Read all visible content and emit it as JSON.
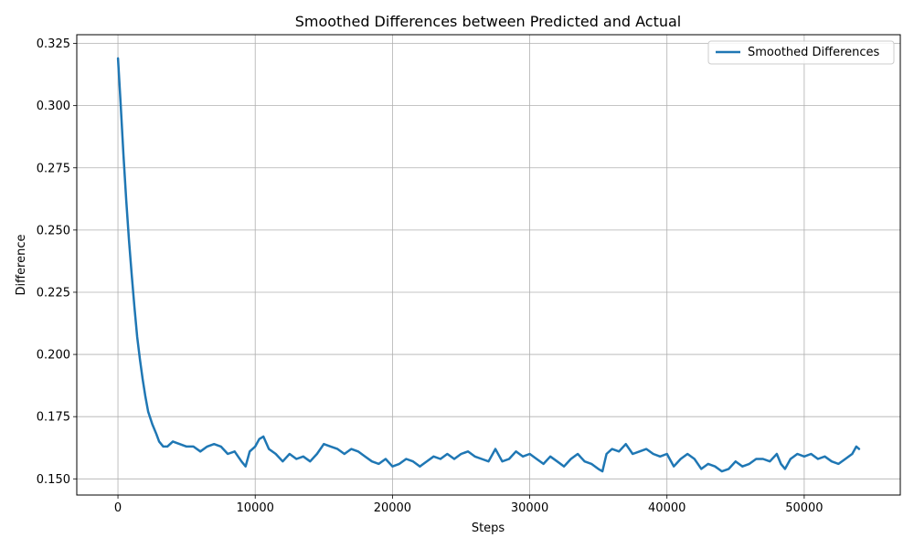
{
  "chart_data": {
    "type": "line",
    "title": "Smoothed Differences between Predicted and Actual",
    "xlabel": "Steps",
    "ylabel": "Difference",
    "xlim": [
      -3000,
      57000
    ],
    "ylim": [
      0.1435,
      0.3285
    ],
    "xticks": [
      0,
      10000,
      20000,
      30000,
      40000,
      50000
    ],
    "yticks": [
      0.15,
      0.175,
      0.2,
      0.225,
      0.25,
      0.275,
      0.3,
      0.325
    ],
    "xtick_labels": [
      "0",
      "10000",
      "20000",
      "30000",
      "40000",
      "50000"
    ],
    "ytick_labels": [
      "0.150",
      "0.175",
      "0.200",
      "0.225",
      "0.250",
      "0.275",
      "0.300",
      "0.325"
    ],
    "grid": true,
    "legend_position": "top-right",
    "line_color": "#1f77b4",
    "series": [
      {
        "name": "Smoothed Differences",
        "x": [
          0,
          200,
          400,
          600,
          800,
          1000,
          1200,
          1400,
          1600,
          1800,
          2000,
          2200,
          2500,
          2800,
          3000,
          3300,
          3600,
          4000,
          4500,
          5000,
          5500,
          6000,
          6500,
          7000,
          7500,
          8000,
          8500,
          9000,
          9300,
          9600,
          10000,
          10300,
          10600,
          11000,
          11500,
          12000,
          12500,
          13000,
          13500,
          14000,
          14500,
          15000,
          15500,
          16000,
          16500,
          17000,
          17500,
          18000,
          18500,
          19000,
          19500,
          20000,
          20500,
          21000,
          21500,
          22000,
          22500,
          23000,
          23500,
          24000,
          24500,
          25000,
          25500,
          26000,
          26500,
          27000,
          27500,
          28000,
          28500,
          29000,
          29500,
          30000,
          30500,
          31000,
          31500,
          32000,
          32500,
          33000,
          33500,
          34000,
          34500,
          35000,
          35300,
          35600,
          36000,
          36500,
          37000,
          37500,
          38000,
          38500,
          39000,
          39500,
          40000,
          40500,
          41000,
          41500,
          42000,
          42500,
          43000,
          43500,
          44000,
          44500,
          45000,
          45500,
          46000,
          46500,
          47000,
          47500,
          48000,
          48300,
          48600,
          49000,
          49500,
          50000,
          50500,
          51000,
          51500,
          52000,
          52500,
          53000,
          53500,
          53800,
          54000
        ],
        "values": [
          0.319,
          0.3,
          0.28,
          0.262,
          0.246,
          0.232,
          0.219,
          0.207,
          0.198,
          0.19,
          0.183,
          0.177,
          0.172,
          0.168,
          0.165,
          0.163,
          0.163,
          0.165,
          0.164,
          0.163,
          0.163,
          0.161,
          0.163,
          0.164,
          0.163,
          0.16,
          0.161,
          0.157,
          0.155,
          0.161,
          0.163,
          0.166,
          0.167,
          0.162,
          0.16,
          0.157,
          0.16,
          0.158,
          0.159,
          0.157,
          0.16,
          0.164,
          0.163,
          0.162,
          0.16,
          0.162,
          0.161,
          0.159,
          0.157,
          0.156,
          0.158,
          0.155,
          0.156,
          0.158,
          0.157,
          0.155,
          0.157,
          0.159,
          0.158,
          0.16,
          0.158,
          0.16,
          0.161,
          0.159,
          0.158,
          0.157,
          0.162,
          0.157,
          0.158,
          0.161,
          0.159,
          0.16,
          0.158,
          0.156,
          0.159,
          0.157,
          0.155,
          0.158,
          0.16,
          0.157,
          0.156,
          0.154,
          0.153,
          0.16,
          0.162,
          0.161,
          0.164,
          0.16,
          0.161,
          0.162,
          0.16,
          0.159,
          0.16,
          0.155,
          0.158,
          0.16,
          0.158,
          0.154,
          0.156,
          0.155,
          0.153,
          0.154,
          0.157,
          0.155,
          0.156,
          0.158,
          0.158,
          0.157,
          0.16,
          0.156,
          0.154,
          0.158,
          0.16,
          0.159,
          0.16,
          0.158,
          0.159,
          0.157,
          0.156,
          0.158,
          0.16,
          0.163,
          0.162
        ]
      }
    ]
  }
}
